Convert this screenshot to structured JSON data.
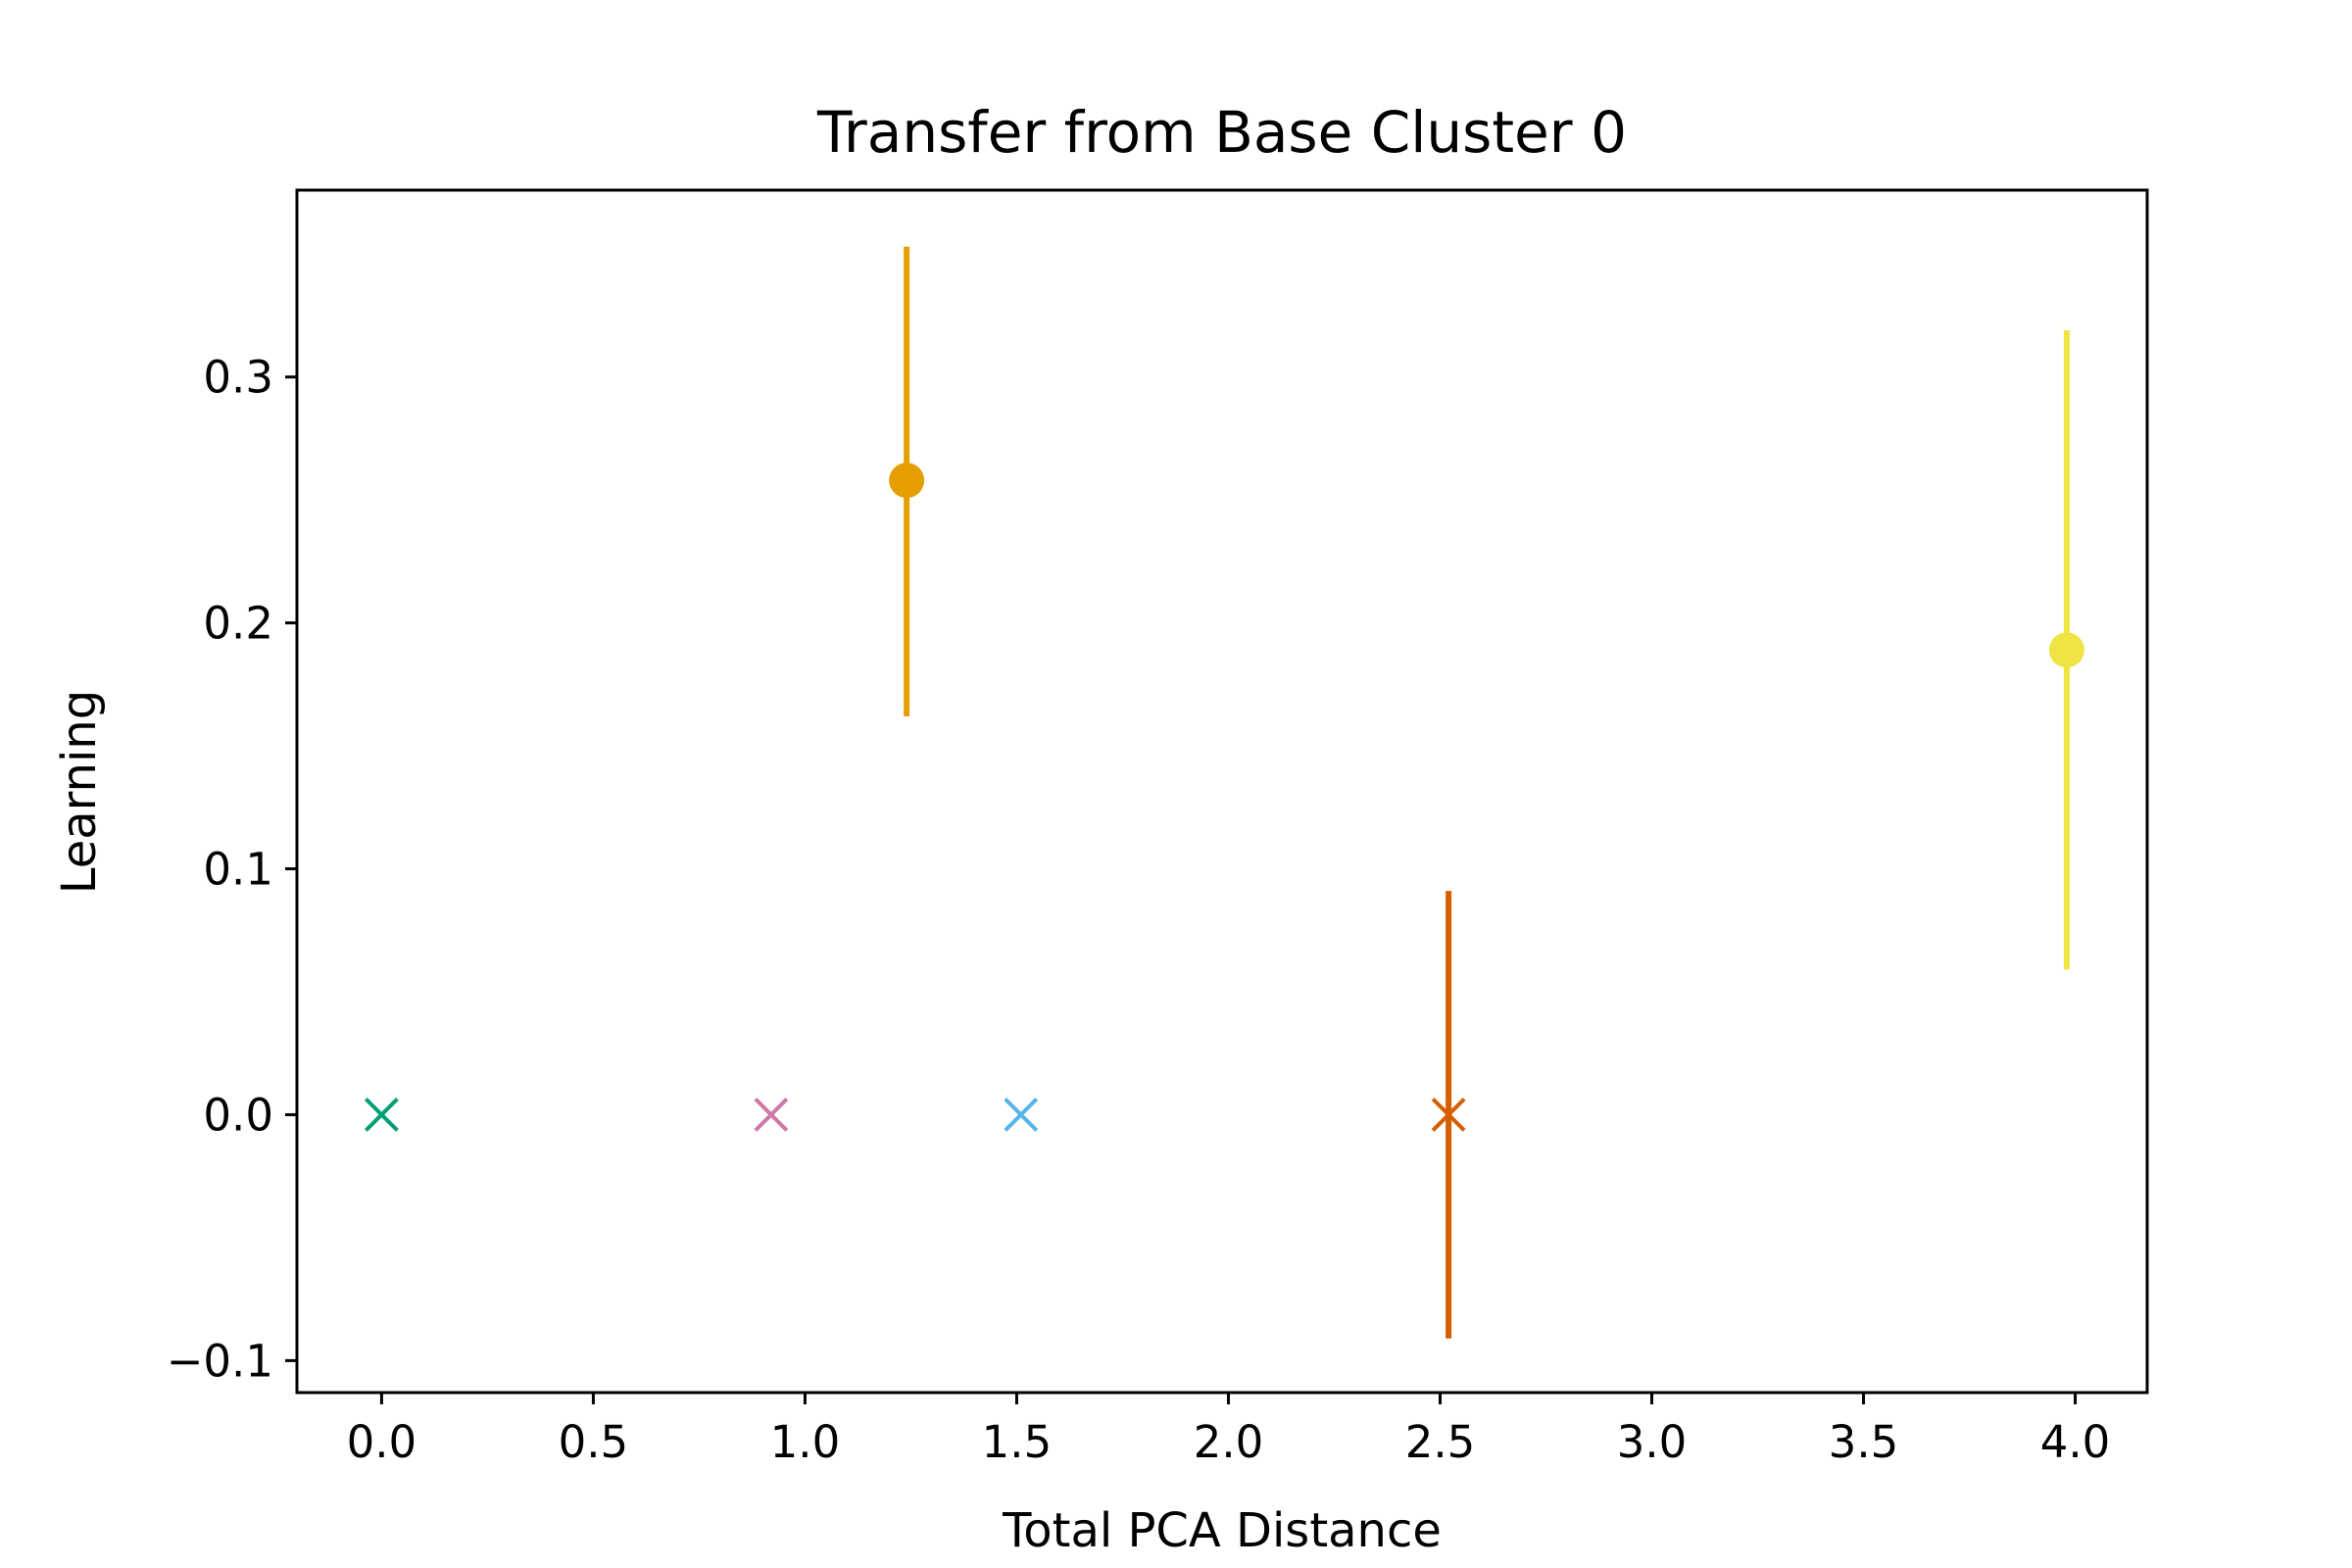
{
  "chart_data": {
    "type": "scatter",
    "title": "Transfer from Base Cluster 0",
    "xlabel": "Total PCA Distance",
    "ylabel": "Learning",
    "xlim": [
      -0.2,
      4.17
    ],
    "ylim": [
      -0.113,
      0.376
    ],
    "x_ticks": [
      0.0,
      0.5,
      1.0,
      1.5,
      2.0,
      2.5,
      3.0,
      3.5,
      4.0
    ],
    "x_tick_labels": [
      "0.0",
      "0.5",
      "1.0",
      "1.5",
      "2.0",
      "2.5",
      "3.0",
      "3.5",
      "4.0"
    ],
    "y_ticks": [
      -0.1,
      0.0,
      0.1,
      0.2,
      0.3
    ],
    "y_tick_labels": [
      "−0.1",
      "0.0",
      "0.1",
      "0.2",
      "0.3"
    ],
    "grid": false,
    "points": [
      {
        "x": 0.0,
        "y": 0.0,
        "marker": "x",
        "color": "#009E73"
      },
      {
        "x": 0.92,
        "y": 0.0,
        "marker": "x",
        "color": "#CC79A7"
      },
      {
        "x": 1.24,
        "y": 0.258,
        "err_low": 0.162,
        "err_high": 0.353,
        "marker": "o",
        "color": "#E69F00"
      },
      {
        "x": 1.51,
        "y": 0.0,
        "marker": "x",
        "color": "#56B4E9"
      },
      {
        "x": 2.52,
        "y": 0.0,
        "err_low": -0.091,
        "err_high": 0.091,
        "marker": "x",
        "color": "#D55E00"
      },
      {
        "x": 3.98,
        "y": 0.189,
        "err_low": 0.059,
        "err_high": 0.319,
        "marker": "o",
        "color": "#F0E442"
      }
    ]
  }
}
